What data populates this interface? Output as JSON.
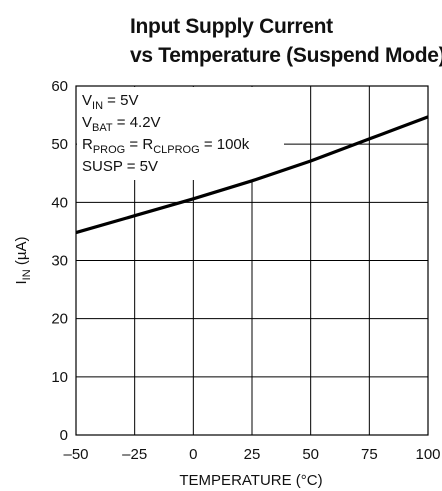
{
  "chart_data": {
    "type": "line",
    "title": [
      "Input Supply Current",
      "vs Temperature (Suspend Mode)"
    ],
    "x_label": "TEMPERATURE (°C)",
    "y_label": [
      {
        "t": "I"
      },
      {
        "sub": "IN"
      },
      {
        "t": " (µA)"
      }
    ],
    "annotation": [
      [
        {
          "t": "V"
        },
        {
          "sub": "IN"
        },
        {
          "t": " = 5V"
        }
      ],
      [
        {
          "t": "V"
        },
        {
          "sub": "BAT"
        },
        {
          "t": " = 4.2V"
        }
      ],
      [
        {
          "t": "R"
        },
        {
          "sub": "PROG"
        },
        {
          "t": " = R"
        },
        {
          "sub": "CLPROG"
        },
        {
          "t": " = 100k"
        }
      ],
      [
        {
          "t": "SUSP = 5V"
        }
      ]
    ],
    "x": [
      -50,
      -25,
      0,
      25,
      50,
      75,
      100
    ],
    "series": [
      {
        "color": "#000000",
        "values": [
          34.8,
          37.7,
          40.6,
          43.7,
          47.1,
          50.9,
          54.7
        ]
      }
    ],
    "xlim": [
      -50,
      100
    ],
    "xticks": [
      {
        "value": -50,
        "label": "–50"
      },
      {
        "value": -25,
        "label": "–25"
      },
      0,
      25,
      50,
      75,
      100
    ],
    "ylim": [
      0,
      60
    ],
    "yticks": [
      0,
      10,
      20,
      30,
      40,
      50,
      60
    ],
    "grid": true
  }
}
